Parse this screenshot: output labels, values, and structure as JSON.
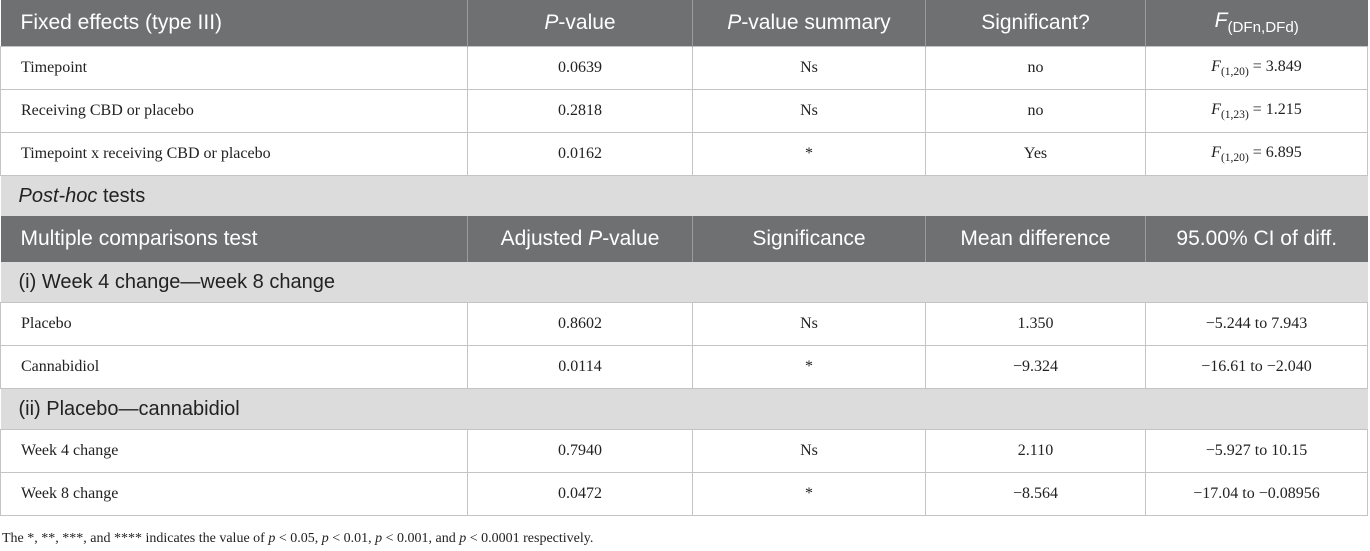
{
  "table": {
    "rows": [
      {
        "kind": "head",
        "cells": [
          "Fixed effects (type III)",
          [
            {
              "text": "P",
              "italic": true
            },
            "-value"
          ],
          [
            {
              "text": "P",
              "italic": true
            },
            "-value summary"
          ],
          "Significant?",
          [
            {
              "text": "F",
              "italic": true
            },
            {
              "text": "(DFn,DFd)",
              "sub": true
            }
          ]
        ]
      },
      {
        "kind": "body",
        "cells": [
          "Timepoint",
          "0.0639",
          "Ns",
          "no",
          [
            {
              "text": "F",
              "italic": true
            },
            {
              "text": "(1,20)",
              "sub": true
            },
            " = 3.849"
          ]
        ]
      },
      {
        "kind": "body",
        "cells": [
          "Receiving CBD or placebo",
          "0.2818",
          "Ns",
          "no",
          [
            {
              "text": "F",
              "italic": true
            },
            {
              "text": "(1,23)",
              "sub": true
            },
            " = 1.215"
          ]
        ]
      },
      {
        "kind": "body",
        "cells": [
          "Timepoint x receiving CBD or placebo",
          "0.0162",
          "*",
          "Yes",
          [
            {
              "text": "F",
              "italic": true
            },
            {
              "text": "(1,20)",
              "sub": true
            },
            " = 6.895"
          ]
        ]
      },
      {
        "kind": "section",
        "cells": [
          [
            {
              "text": "Post-hoc",
              "italic": true
            },
            " tests"
          ]
        ]
      },
      {
        "kind": "head",
        "cells": [
          "Multiple comparisons test",
          [
            "Adjusted ",
            {
              "text": "P",
              "italic": true
            },
            "-value"
          ],
          "Significance",
          "Mean difference",
          "95.00% CI of diff."
        ]
      },
      {
        "kind": "section",
        "cells": [
          "(i) Week 4 change—week 8 change"
        ]
      },
      {
        "kind": "body",
        "cells": [
          "Placebo",
          "0.8602",
          "Ns",
          "1.350",
          "−5.244 to 7.943"
        ]
      },
      {
        "kind": "body",
        "cells": [
          "Cannabidiol",
          "0.0114",
          "*",
          "−9.324",
          "−16.61 to −2.040"
        ]
      },
      {
        "kind": "section",
        "cells": [
          "(ii) Placebo—cannabidiol"
        ]
      },
      {
        "kind": "body",
        "cells": [
          "Week 4 change",
          "0.7940",
          "Ns",
          "2.110",
          "−5.927 to 10.15"
        ]
      },
      {
        "kind": "body",
        "cells": [
          "Week 8 change",
          "0.0472",
          "*",
          "−8.564",
          "−17.04 to −0.08956"
        ]
      }
    ],
    "footnote": [
      "The *, **, ***, and **** indicates the value of ",
      {
        "text": "p",
        "italic": true
      },
      " < 0.05, ",
      {
        "text": "p",
        "italic": true
      },
      " < 0.01, ",
      {
        "text": "p",
        "italic": true
      },
      " < 0.001, and ",
      {
        "text": "p",
        "italic": true
      },
      " < 0.0001 respectively."
    ]
  }
}
